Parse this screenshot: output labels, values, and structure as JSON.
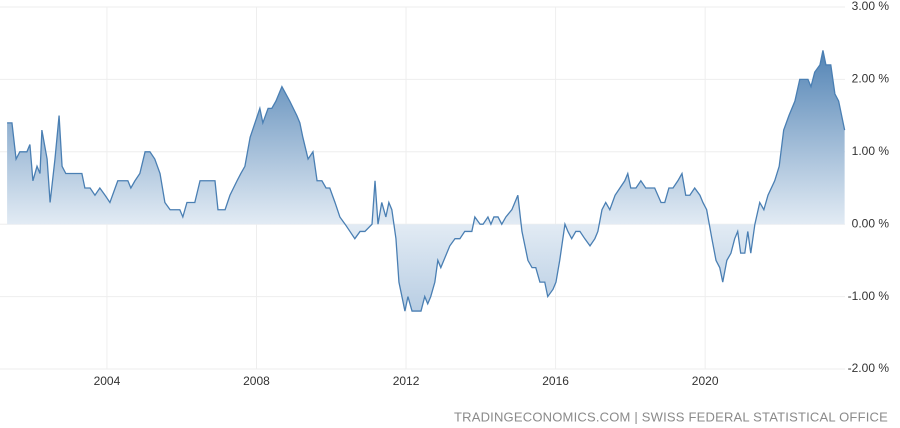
{
  "chart_data": {
    "type": "area",
    "source": "TRADINGECONOMICS.COM | SWISS FEDERAL STATISTICAL OFFICE",
    "color": "#4a7fb3",
    "x": [
      2001.33,
      2001.46,
      2001.57,
      2001.67,
      2001.86,
      2001.94,
      2002.02,
      2002.13,
      2002.21,
      2002.26,
      2002.4,
      2002.48,
      2002.61,
      2002.72,
      2002.8,
      2002.9,
      2003.01,
      2003.15,
      2003.33,
      2003.41,
      2003.55,
      2003.68,
      2003.81,
      2003.95,
      2004.08,
      2004.22,
      2004.29,
      2004.4,
      2004.56,
      2004.64,
      2004.75,
      2004.88,
      2005.02,
      2005.15,
      2005.28,
      2005.42,
      2005.55,
      2005.69,
      2005.82,
      2005.95,
      2006.03,
      2006.14,
      2006.35,
      2006.49,
      2006.89,
      2006.97,
      2007.16,
      2007.29,
      2007.48,
      2007.58,
      2007.69,
      2007.83,
      2007.96,
      2008.09,
      2008.17,
      2008.31,
      2008.41,
      2008.52,
      2008.68,
      2008.89,
      2009.08,
      2009.16,
      2009.24,
      2009.38,
      2009.51,
      2009.62,
      2009.75,
      2009.86,
      2009.96,
      2010.1,
      2010.23,
      2010.37,
      2010.5,
      2010.63,
      2010.77,
      2010.9,
      2011.09,
      2011.17,
      2011.25,
      2011.35,
      2011.46,
      2011.54,
      2011.62,
      2011.73,
      2011.81,
      2011.89,
      2011.97,
      2012.05,
      2012.16,
      2012.32,
      2012.4,
      2012.5,
      2012.58,
      2012.66,
      2012.77,
      2012.85,
      2012.93,
      2013.01,
      2013.17,
      2013.31,
      2013.44,
      2013.57,
      2013.76,
      2013.84,
      2013.98,
      2014.06,
      2014.19,
      2014.27,
      2014.35,
      2014.46,
      2014.56,
      2014.67,
      2014.83,
      2014.91,
      2014.99,
      2015.1,
      2015.18,
      2015.26,
      2015.37,
      2015.47,
      2015.58,
      2015.71,
      2015.79,
      2015.93,
      2016.01,
      2016.11,
      2016.25,
      2016.33,
      2016.43,
      2016.54,
      2016.65,
      2016.78,
      2016.92,
      2017.05,
      2017.13,
      2017.24,
      2017.34,
      2017.45,
      2017.59,
      2017.72,
      2017.85,
      2017.93,
      2018.01,
      2018.15,
      2018.28,
      2018.41,
      2018.52,
      2018.65,
      2018.82,
      2018.92,
      2019.03,
      2019.14,
      2019.27,
      2019.38,
      2019.48,
      2019.59,
      2019.72,
      2019.86,
      2019.94,
      2020.04,
      2020.18,
      2020.29,
      2020.39,
      2020.47,
      2020.58,
      2020.69,
      2020.79,
      2020.87,
      2020.95,
      2021.06,
      2021.14,
      2021.22,
      2021.33,
      2021.46,
      2021.57,
      2021.68,
      2021.86,
      2021.98,
      2022.1,
      2022.24,
      2022.4,
      2022.53,
      2022.75,
      2022.83,
      2022.93,
      2023.07,
      2023.15,
      2023.23,
      2023.36,
      2023.47,
      2023.57,
      2023.73
    ],
    "values": [
      1.4,
      1.4,
      0.9,
      1.0,
      1.0,
      1.1,
      0.6,
      0.8,
      0.7,
      1.3,
      0.9,
      0.3,
      0.9,
      1.5,
      0.8,
      0.7,
      0.7,
      0.7,
      0.7,
      0.5,
      0.5,
      0.4,
      0.5,
      0.4,
      0.3,
      0.5,
      0.6,
      0.6,
      0.6,
      0.5,
      0.6,
      0.7,
      1.0,
      1.0,
      0.9,
      0.7,
      0.3,
      0.2,
      0.2,
      0.2,
      0.1,
      0.3,
      0.3,
      0.6,
      0.6,
      0.2,
      0.2,
      0.4,
      0.6,
      0.7,
      0.8,
      1.2,
      1.4,
      1.6,
      1.4,
      1.6,
      1.6,
      1.7,
      1.9,
      1.7,
      1.5,
      1.4,
      1.2,
      0.9,
      1.0,
      0.6,
      0.6,
      0.5,
      0.5,
      0.3,
      0.1,
      0.0,
      -0.1,
      -0.2,
      -0.1,
      -0.1,
      0.0,
      0.6,
      0.0,
      0.3,
      0.1,
      0.3,
      0.2,
      -0.2,
      -0.8,
      -1.0,
      -1.2,
      -1.0,
      -1.2,
      -1.2,
      -1.2,
      -1.0,
      -1.1,
      -1.0,
      -0.8,
      -0.5,
      -0.6,
      -0.5,
      -0.3,
      -0.2,
      -0.2,
      -0.1,
      -0.1,
      0.1,
      0.0,
      0.0,
      0.1,
      0.0,
      0.1,
      0.1,
      0.0,
      0.1,
      0.2,
      0.3,
      0.4,
      -0.1,
      -0.3,
      -0.5,
      -0.6,
      -0.6,
      -0.8,
      -0.8,
      -1.0,
      -0.9,
      -0.8,
      -0.5,
      0.0,
      -0.1,
      -0.2,
      -0.1,
      -0.1,
      -0.2,
      -0.3,
      -0.2,
      -0.1,
      0.2,
      0.3,
      0.2,
      0.4,
      0.5,
      0.6,
      0.7,
      0.5,
      0.5,
      0.6,
      0.5,
      0.5,
      0.5,
      0.3,
      0.3,
      0.5,
      0.5,
      0.6,
      0.7,
      0.4,
      0.4,
      0.5,
      0.4,
      0.3,
      0.2,
      -0.2,
      -0.5,
      -0.6,
      -0.8,
      -0.5,
      -0.4,
      -0.2,
      -0.1,
      -0.4,
      -0.4,
      -0.1,
      -0.4,
      0.0,
      0.3,
      0.2,
      0.4,
      0.6,
      0.8,
      1.3,
      1.5,
      1.7,
      2.0,
      2.0,
      1.9,
      2.1,
      2.2,
      2.4,
      2.2,
      2.2,
      1.8,
      1.7,
      1.3
    ],
    "xlim": [
      2001.14,
      2023.74
    ],
    "xticks": [
      2004,
      2008,
      2012,
      2016,
      2020
    ],
    "ylim": [
      -2,
      3
    ],
    "yticks": [
      {
        "value": -2,
        "label": "-2.00 %"
      },
      {
        "value": -1,
        "label": "-1.00 %"
      },
      {
        "value": 0,
        "label": "0.00 %"
      },
      {
        "value": 1,
        "label": "1.00 %"
      },
      {
        "value": 2,
        "label": "2.00 %"
      },
      {
        "value": 3,
        "label": "3.00 %"
      }
    ],
    "grid": true
  }
}
